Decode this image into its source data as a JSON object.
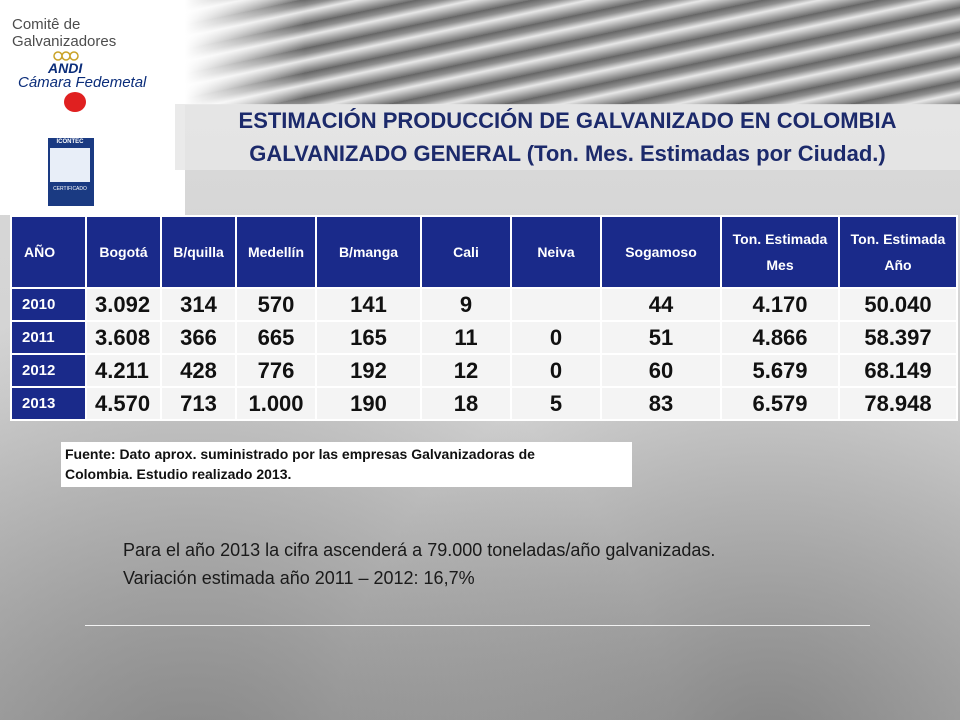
{
  "header": {
    "brand": "Comitê de Galvanizadores",
    "andi_logo_text": "ANDI",
    "andi_logo_subtitle": "Cámara Fedemetal",
    "certification_logo_text": "ICONTEC",
    "certification_label": "CERTIFICADO"
  },
  "title": {
    "line1": "ESTIMACIÓN PRODUCCIÓN DE GALVANIZADO EN COLOMBIA",
    "line2": "GALVANIZADO GENERAL (Ton. Mes. Estimadas por Ciudad.)"
  },
  "table": {
    "headers": [
      "AÑO",
      "Bogotá",
      "B/quilla",
      "Medellín",
      "B/manga",
      "Cali",
      "Neiva",
      "Sogamoso",
      "Ton.  Estimada",
      "Ton. Estimada"
    ],
    "headers_line2": [
      "",
      "",
      "",
      "",
      "",
      "",
      "",
      "",
      "Mes",
      "Año"
    ],
    "rows": [
      [
        "2010",
        "3.092",
        "314",
        "570",
        "141",
        "9",
        "",
        "44",
        "4.170",
        "50.040"
      ],
      [
        "2011",
        "3.608",
        "366",
        "665",
        "165",
        "11",
        "0",
        "51",
        "4.866",
        "58.397"
      ],
      [
        "2012",
        "4.211",
        "428",
        "776",
        "192",
        "12",
        "0",
        "60",
        "5.679",
        "68.149"
      ],
      [
        "2013",
        "4.570",
        "713",
        "1.000",
        "190",
        "18",
        "5",
        "83",
        "6.579",
        "78.948"
      ]
    ]
  },
  "source": {
    "line1": "Fuente:  Dato aprox. suministrado por las empresas Galvanizadoras de",
    "line2": "Colombia. Estudio realizado 2013."
  },
  "notes": {
    "line1": "Para el año 2013 la cifra ascenderá  a 79.000 toneladas/año galvanizadas.",
    "line2": "Variación  estimada año 2011 – 2012:  16,7%"
  }
}
